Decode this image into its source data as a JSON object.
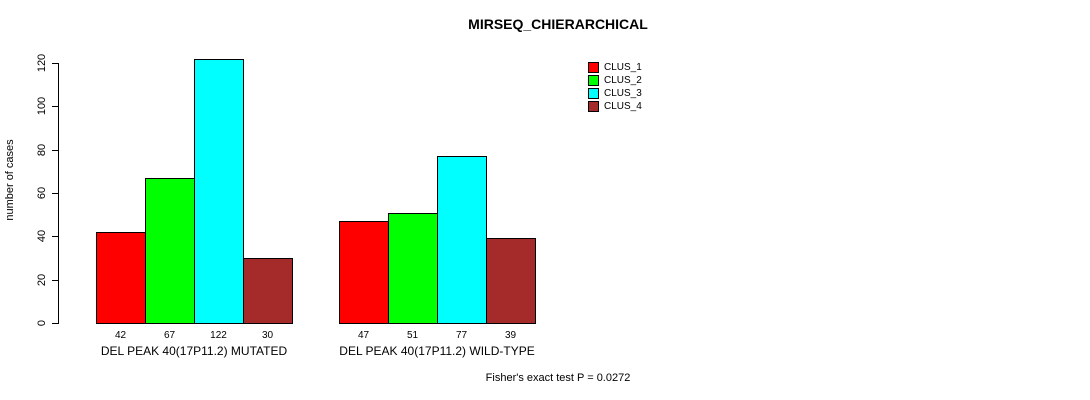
{
  "title": "MIRSEQ_CHIERARCHICAL",
  "footer": "Fisher's exact test P = 0.0272",
  "colors": {
    "background": "#ffffff",
    "axis": "#000000",
    "bar_border": "#000000",
    "clus_1": "#ff0000",
    "clus_2": "#00ff00",
    "clus_3": "#00ffff",
    "clus_4": "#a52a2a"
  },
  "chart_data": {
    "type": "bar",
    "title": "MIRSEQ_CHIERARCHICAL",
    "xlabel": "",
    "ylabel": "number of cases",
    "ylim": [
      0,
      130
    ],
    "yticks": [
      0,
      20,
      40,
      60,
      80,
      100,
      120
    ],
    "grid": false,
    "categories": [
      "DEL PEAK 40(17P11.2) MUTATED",
      "DEL PEAK 40(17P11.2) WILD-TYPE"
    ],
    "series": [
      {
        "name": "CLUS_1",
        "color": "#ff0000",
        "values": [
          42,
          47
        ]
      },
      {
        "name": "CLUS_2",
        "color": "#00ff00",
        "values": [
          67,
          51
        ]
      },
      {
        "name": "CLUS_3",
        "color": "#00ffff",
        "values": [
          122,
          77
        ]
      },
      {
        "name": "CLUS_4",
        "color": "#a52a2a",
        "values": [
          30,
          39
        ]
      }
    ],
    "bar_labels": [
      [
        42,
        67,
        122,
        30
      ],
      [
        47,
        51,
        77,
        39
      ]
    ],
    "legend": {
      "position": "top-right",
      "entries": [
        "CLUS_1",
        "CLUS_2",
        "CLUS_3",
        "CLUS_4"
      ]
    },
    "annotation": "Fisher's exact test P = 0.0272"
  }
}
